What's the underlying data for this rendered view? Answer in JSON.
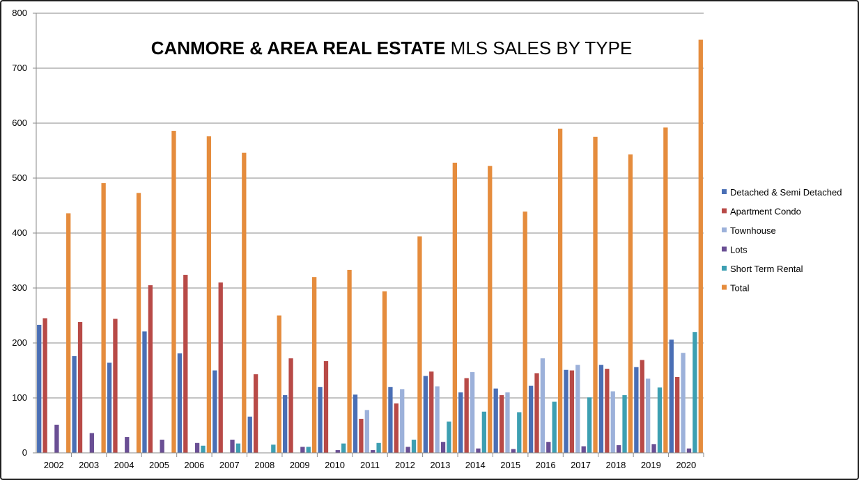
{
  "chart_data": {
    "type": "bar",
    "title": {
      "bold": "CANMORE & AREA REAL ESTATE",
      "normal": " MLS SALES BY TYPE"
    },
    "xlabel": "",
    "ylabel": "",
    "ylim": [
      0,
      800
    ],
    "yticks": [
      0,
      100,
      200,
      300,
      400,
      500,
      600,
      700,
      800
    ],
    "grid": true,
    "legend_position": "right",
    "categories": [
      "2002",
      "2003",
      "2004",
      "2005",
      "2006",
      "2007",
      "2008",
      "2009",
      "2010",
      "2011",
      "2012",
      "2013",
      "2014",
      "2015",
      "2016",
      "2017",
      "2018",
      "2019",
      "2020"
    ],
    "series": [
      {
        "name": "Detached & Semi Detached",
        "color": "#4a6fb5",
        "values": [
          233,
          176,
          164,
          221,
          181,
          150,
          66,
          105,
          120,
          106,
          120,
          140,
          110,
          117,
          122,
          151,
          160,
          156,
          206
        ]
      },
      {
        "name": "Apartment Condo",
        "color": "#b84a47",
        "values": [
          245,
          238,
          244,
          305,
          324,
          310,
          143,
          172,
          167,
          62,
          90,
          148,
          136,
          105,
          145,
          150,
          153,
          169,
          138
        ]
      },
      {
        "name": "Townhouse",
        "color": "#9cb1da",
        "values": [
          0,
          0,
          0,
          0,
          0,
          0,
          0,
          0,
          0,
          78,
          116,
          121,
          147,
          110,
          172,
          160,
          112,
          135,
          182
        ]
      },
      {
        "name": "Lots",
        "color": "#6a4f94",
        "values": [
          51,
          36,
          29,
          24,
          18,
          24,
          0,
          11,
          5,
          5,
          11,
          20,
          8,
          7,
          20,
          12,
          14,
          16,
          8
        ]
      },
      {
        "name": "Short Term Rental",
        "color": "#3d9fb2",
        "values": [
          0,
          0,
          0,
          0,
          13,
          17,
          15,
          11,
          17,
          18,
          24,
          57,
          75,
          74,
          93,
          101,
          105,
          119,
          220
        ]
      },
      {
        "name": "Total",
        "color": "#e58c3d",
        "values": [
          436,
          491,
          473,
          586,
          576,
          546,
          250,
          320,
          333,
          294,
          394,
          528,
          522,
          439,
          590,
          575,
          543,
          592,
          752
        ]
      }
    ]
  }
}
